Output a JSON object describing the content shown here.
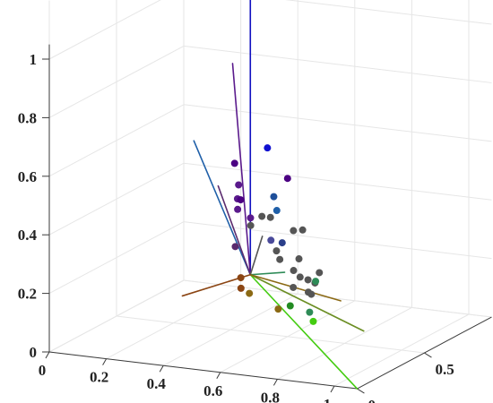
{
  "chart_data": {
    "type": "scatter",
    "title": "",
    "xlabel": "",
    "ylabel": "",
    "zlabel": "",
    "x_ticks": [
      "0",
      "0.2",
      "0.4",
      "0.6",
      "0.8",
      "1"
    ],
    "y_ticks": [
      "0",
      "0.5"
    ],
    "z_ticks": [
      "0",
      "0.2",
      "0.4",
      "0.6",
      "0.8",
      "1"
    ],
    "xlim": [
      0,
      1
    ],
    "ylim": [
      0,
      1
    ],
    "zlim": [
      0,
      1
    ],
    "grid": true,
    "vertex": {
      "x": 0.46,
      "y": 0.52,
      "z": 0.19
    },
    "rays": [
      {
        "to": {
          "x": 0.46,
          "y": 0.52,
          "z": 1.2
        },
        "color": "#1010c0"
      },
      {
        "to": {
          "x": 0.36,
          "y": 0.6,
          "z": 0.88
        },
        "color": "#5a1a8c"
      },
      {
        "to": {
          "x": 0.46,
          "y": 0.1,
          "z": 0.75
        },
        "color": "#1f5fa8"
      },
      {
        "to": {
          "x": 0.3,
          "y": 0.62,
          "z": 0.45
        },
        "color": "#5a2a6e"
      },
      {
        "to": {
          "x": 0.54,
          "y": 0.44,
          "z": 0.35
        },
        "color": "#555555"
      },
      {
        "to": {
          "x": 0.75,
          "y": 0.16,
          "z": 0.32
        },
        "color": "#2e8b57"
      },
      {
        "to": {
          "x": 1.08,
          "y": 0.0,
          "z": 0.0
        },
        "color": "#44cc11"
      },
      {
        "to": {
          "x": 0.82,
          "y": 0.6,
          "z": 0.02
        },
        "color": "#6b8e23"
      },
      {
        "to": {
          "x": 0.56,
          "y": 0.98,
          "z": 0.0
        },
        "color": "#8b6914"
      },
      {
        "to": {
          "x": 0.08,
          "y": 0.82,
          "z": 0.0
        },
        "color": "#8b4513"
      }
    ],
    "points": [
      {
        "x": 0.52,
        "y": 0.52,
        "z": 0.63,
        "color": "#1010d0"
      },
      {
        "x": 0.6,
        "y": 0.5,
        "z": 0.54,
        "color": "#4b0082"
      },
      {
        "x": 0.58,
        "y": 0.44,
        "z": 0.49,
        "color": "#1f4f9a"
      },
      {
        "x": 0.6,
        "y": 0.42,
        "z": 0.45,
        "color": "#1f5fa8"
      },
      {
        "x": 0.4,
        "y": 0.56,
        "z": 0.48,
        "color": "#5a1a8c"
      },
      {
        "x": 0.47,
        "y": 0.5,
        "z": 0.39,
        "color": "#5a1a8c"
      },
      {
        "x": 0.51,
        "y": 0.5,
        "z": 0.4,
        "color": "#555555"
      },
      {
        "x": 0.54,
        "y": 0.5,
        "z": 0.4,
        "color": "#555555"
      },
      {
        "x": 0.48,
        "y": 0.48,
        "z": 0.37,
        "color": "#555555"
      },
      {
        "x": 0.63,
        "y": 0.48,
        "z": 0.37,
        "color": "#555555"
      },
      {
        "x": 0.7,
        "y": 0.4,
        "z": 0.4,
        "color": "#555555"
      },
      {
        "x": 0.57,
        "y": 0.44,
        "z": 0.34,
        "color": "#4a4a9a"
      },
      {
        "x": 0.6,
        "y": 0.46,
        "z": 0.33,
        "color": "#2a3f8a"
      },
      {
        "x": 0.58,
        "y": 0.46,
        "z": 0.3,
        "color": "#555555"
      },
      {
        "x": 0.62,
        "y": 0.4,
        "z": 0.29,
        "color": "#555555"
      },
      {
        "x": 0.71,
        "y": 0.36,
        "z": 0.25,
        "color": "#555555"
      },
      {
        "x": 0.82,
        "y": 0.27,
        "z": 0.3,
        "color": "#555555"
      },
      {
        "x": 0.8,
        "y": 0.28,
        "z": 0.26,
        "color": "#555555"
      },
      {
        "x": 0.64,
        "y": 0.5,
        "z": 0.27,
        "color": "#555555"
      },
      {
        "x": 0.64,
        "y": 0.46,
        "z": 0.24,
        "color": "#555555"
      },
      {
        "x": 0.7,
        "y": 0.44,
        "z": 0.22,
        "color": "#555555"
      },
      {
        "x": 0.72,
        "y": 0.4,
        "z": 0.19,
        "color": "#555555"
      },
      {
        "x": 0.74,
        "y": 0.38,
        "z": 0.19,
        "color": "#555555"
      },
      {
        "x": 0.62,
        "y": 0.5,
        "z": 0.17,
        "color": "#555555"
      },
      {
        "x": 0.8,
        "y": 0.24,
        "z": 0.17,
        "color": "#2e8b57"
      },
      {
        "x": 0.84,
        "y": 0.2,
        "z": 0.29,
        "color": "#2e8b57"
      },
      {
        "x": 0.86,
        "y": 0.14,
        "z": 0.17,
        "color": "#44cc11"
      },
      {
        "x": 0.6,
        "y": 0.52,
        "z": 0.1,
        "color": "#228b22"
      },
      {
        "x": 0.52,
        "y": 0.6,
        "z": 0.06,
        "color": "#8b6914"
      },
      {
        "x": 0.4,
        "y": 0.64,
        "z": 0.09,
        "color": "#8b6914"
      },
      {
        "x": 0.38,
        "y": 0.62,
        "z": 0.11,
        "color": "#8b4513"
      },
      {
        "x": 0.37,
        "y": 0.64,
        "z": 0.14,
        "color": "#8b4513"
      },
      {
        "x": 0.34,
        "y": 0.68,
        "z": 0.36,
        "color": "#5a1a8c"
      },
      {
        "x": 0.33,
        "y": 0.7,
        "z": 0.39,
        "color": "#5a1a8c"
      },
      {
        "x": 0.36,
        "y": 0.66,
        "z": 0.4,
        "color": "#4b0082"
      },
      {
        "x": 0.32,
        "y": 0.7,
        "z": 0.51,
        "color": "#4b0082"
      },
      {
        "x": 0.36,
        "y": 0.62,
        "z": 0.25,
        "color": "#5a2a6e"
      }
    ]
  }
}
